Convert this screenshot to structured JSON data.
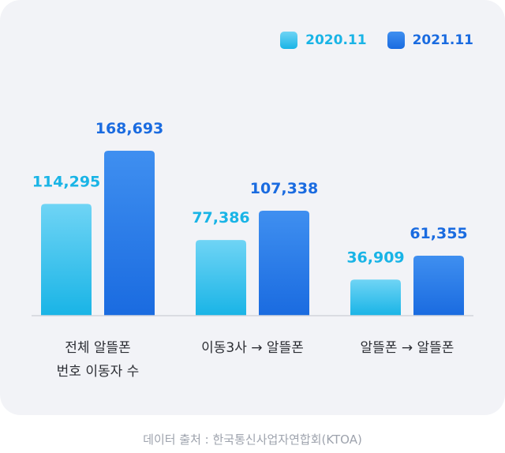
{
  "chart_data": {
    "type": "bar",
    "categories": [
      [
        "전체 알뜰폰",
        "번호 이동자 수"
      ],
      [
        "이동3사 → 알뜰폰"
      ],
      [
        "알뜰폰 → 알뜰폰"
      ]
    ],
    "series": [
      {
        "name": "2020.11",
        "values": [
          114295,
          77386,
          36909
        ],
        "labels": [
          "114,295",
          "77,386",
          "36,909"
        ],
        "color": "#19b4e6",
        "color_light": "#6fd4f5"
      },
      {
        "name": "2021.11",
        "values": [
          168693,
          107338,
          61355
        ],
        "labels": [
          "168,693",
          "107,338",
          "61,355"
        ],
        "color": "#1a6be0",
        "color_light": "#3f8ff0"
      }
    ],
    "ylim": [
      0,
      230000
    ],
    "legend": "top-right",
    "grid": false
  },
  "source": "데이터 출처 : 한국통신사업자연합회(KTOA)"
}
